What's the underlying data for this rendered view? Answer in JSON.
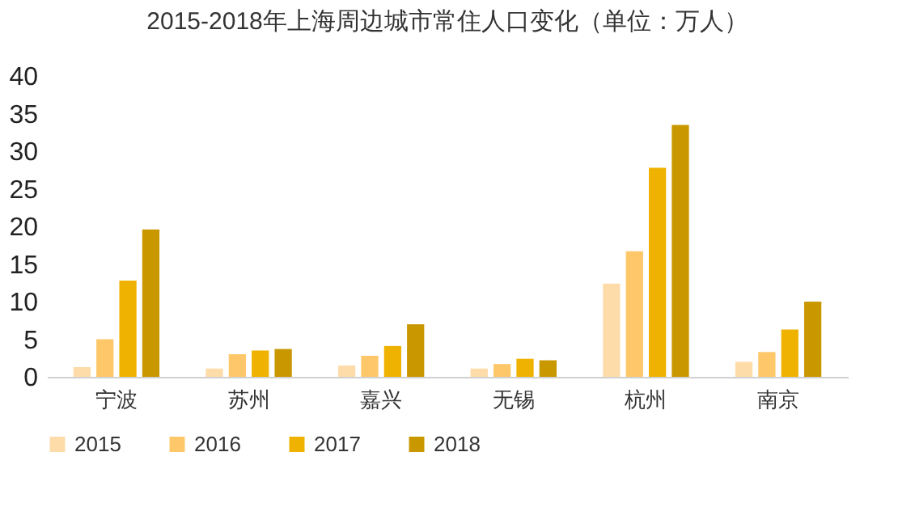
{
  "chart_data": {
    "type": "bar",
    "title": "2015-2018年上海周边城市常住人口变化（单位：万人）",
    "categories": [
      "宁波",
      "苏州",
      "嘉兴",
      "无锡",
      "杭州",
      "南京"
    ],
    "series": [
      {
        "name": "2015",
        "color": "#fddcaa",
        "values": [
          1.3,
          1.1,
          1.5,
          1.1,
          12.4,
          2.0
        ]
      },
      {
        "name": "2016",
        "color": "#fec86a",
        "values": [
          5.0,
          3.0,
          2.8,
          1.7,
          16.7,
          3.3
        ]
      },
      {
        "name": "2017",
        "color": "#efb200",
        "values": [
          12.8,
          3.5,
          4.1,
          2.4,
          27.8,
          6.3
        ]
      },
      {
        "name": "2018",
        "color": "#c99700",
        "values": [
          19.6,
          3.7,
          7.0,
          2.2,
          33.5,
          10.0
        ]
      }
    ],
    "ylim": [
      0,
      40
    ],
    "yticks": [
      0,
      5,
      10,
      15,
      20,
      25,
      30,
      35,
      40
    ],
    "grid": false,
    "legend": "bottom"
  }
}
